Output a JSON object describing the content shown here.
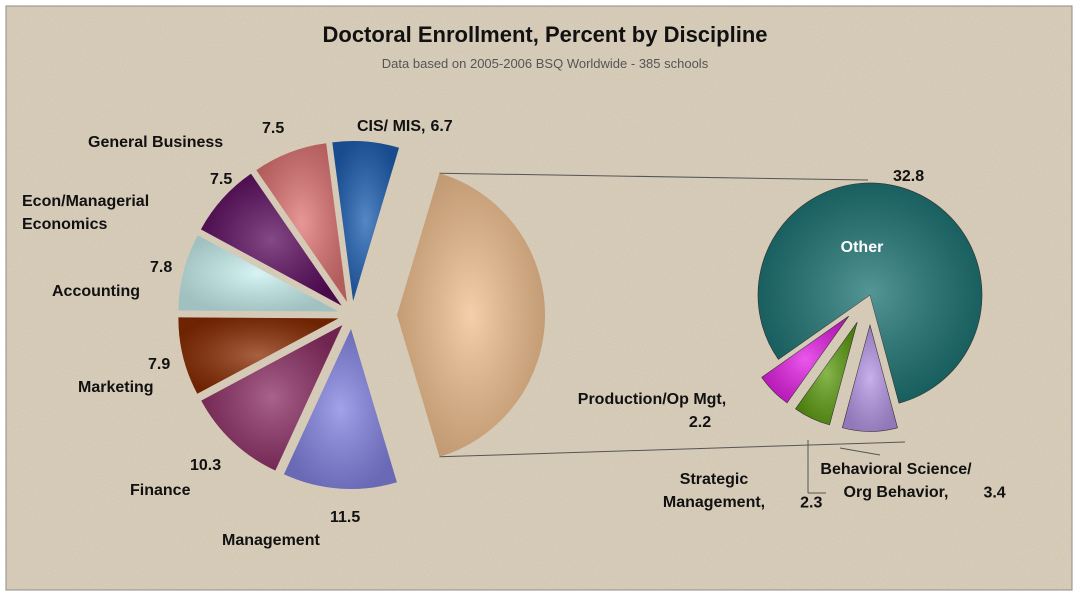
{
  "chart_data": {
    "type": "pie_of_pie",
    "title": "Doctoral Enrollment, Percent by Discipline",
    "subtitle": "Data based on 2005-2006 BSQ Worldwide - 385 schools",
    "categories": [
      "Management",
      "Finance",
      "Marketing",
      "Accounting",
      "Econ/Managerial\nEconomics",
      "General Business",
      "CIS/ MIS,"
    ],
    "values": [
      11.5,
      10.3,
      7.9,
      7.8,
      7.5,
      7.5,
      6.7
    ],
    "colors": [
      "#8383e3",
      "#8c2e64",
      "#8a2c02",
      "#c9f1f1",
      "#5c0c5e",
      "#e07474",
      "#1d5fb2"
    ],
    "aggregate_color": "#f0bf8e",
    "secondary": {
      "categories": [
        "Behavioral Science/\nOrg Behavior,",
        "Strategic\nManagement,",
        "Production/Op Mgt,",
        "Other"
      ],
      "values": [
        3.4,
        2.3,
        2.2,
        32.8
      ],
      "colors": [
        "#b596e6",
        "#5f9e12",
        "#e41fe4",
        "#1b7272"
      ]
    }
  }
}
